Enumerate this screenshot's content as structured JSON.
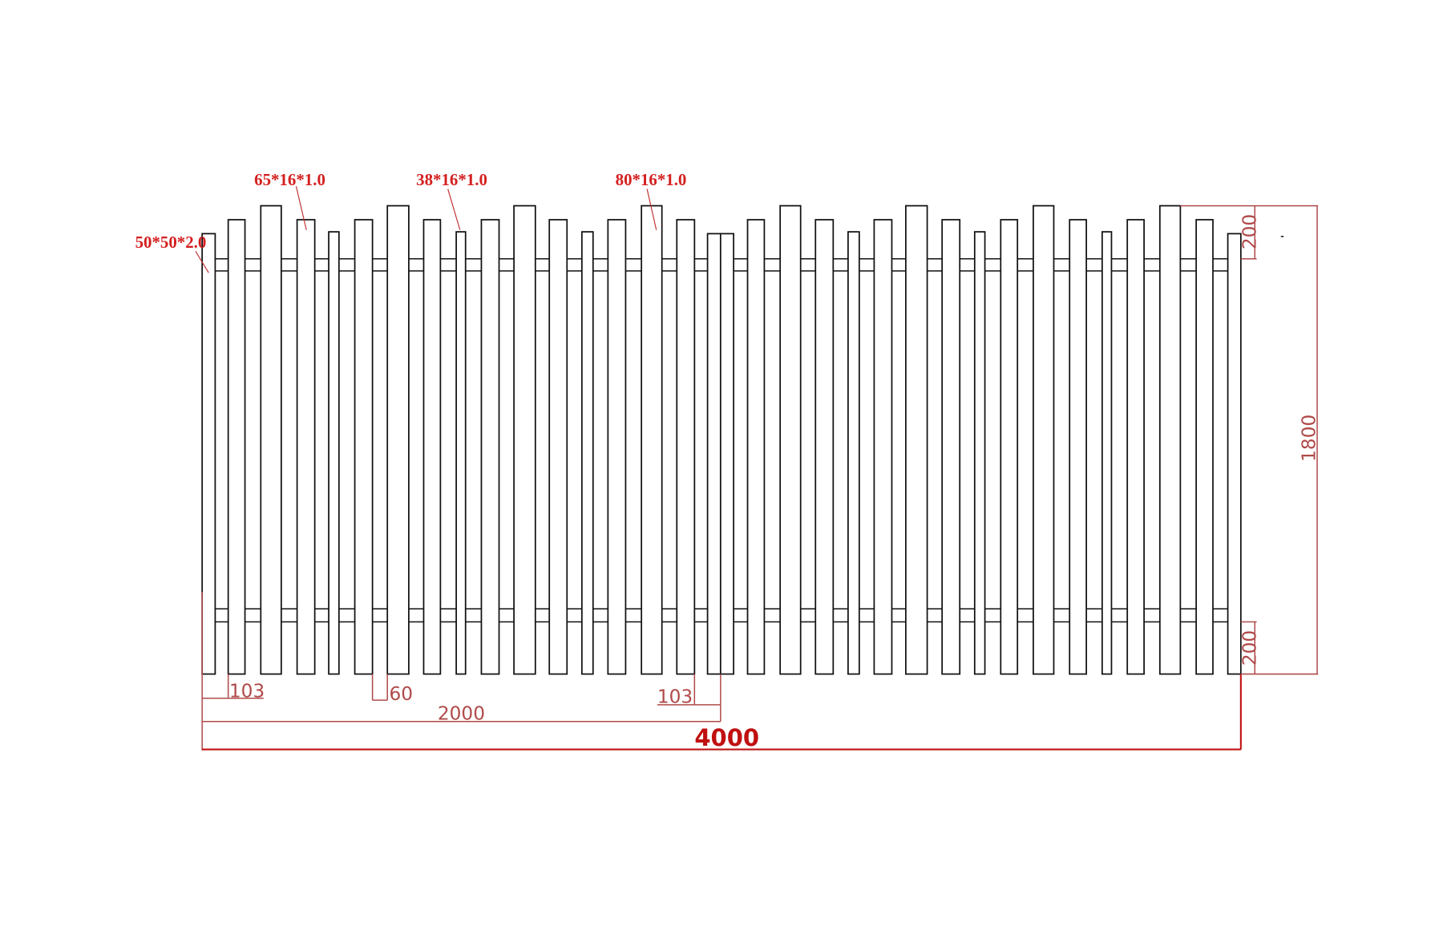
{
  "labels": {
    "post": "50*50*2.0",
    "picket_a": "65*16*1.0",
    "picket_b": "38*16*1.0",
    "picket_c": "80*16*1.0"
  },
  "dimensions": {
    "first_offset": "103",
    "gap": "60",
    "half_width": "2000",
    "mid_offset": "103",
    "total_width": "4000",
    "top_rail": "200",
    "height": "1800",
    "bottom_rail": "200"
  }
}
